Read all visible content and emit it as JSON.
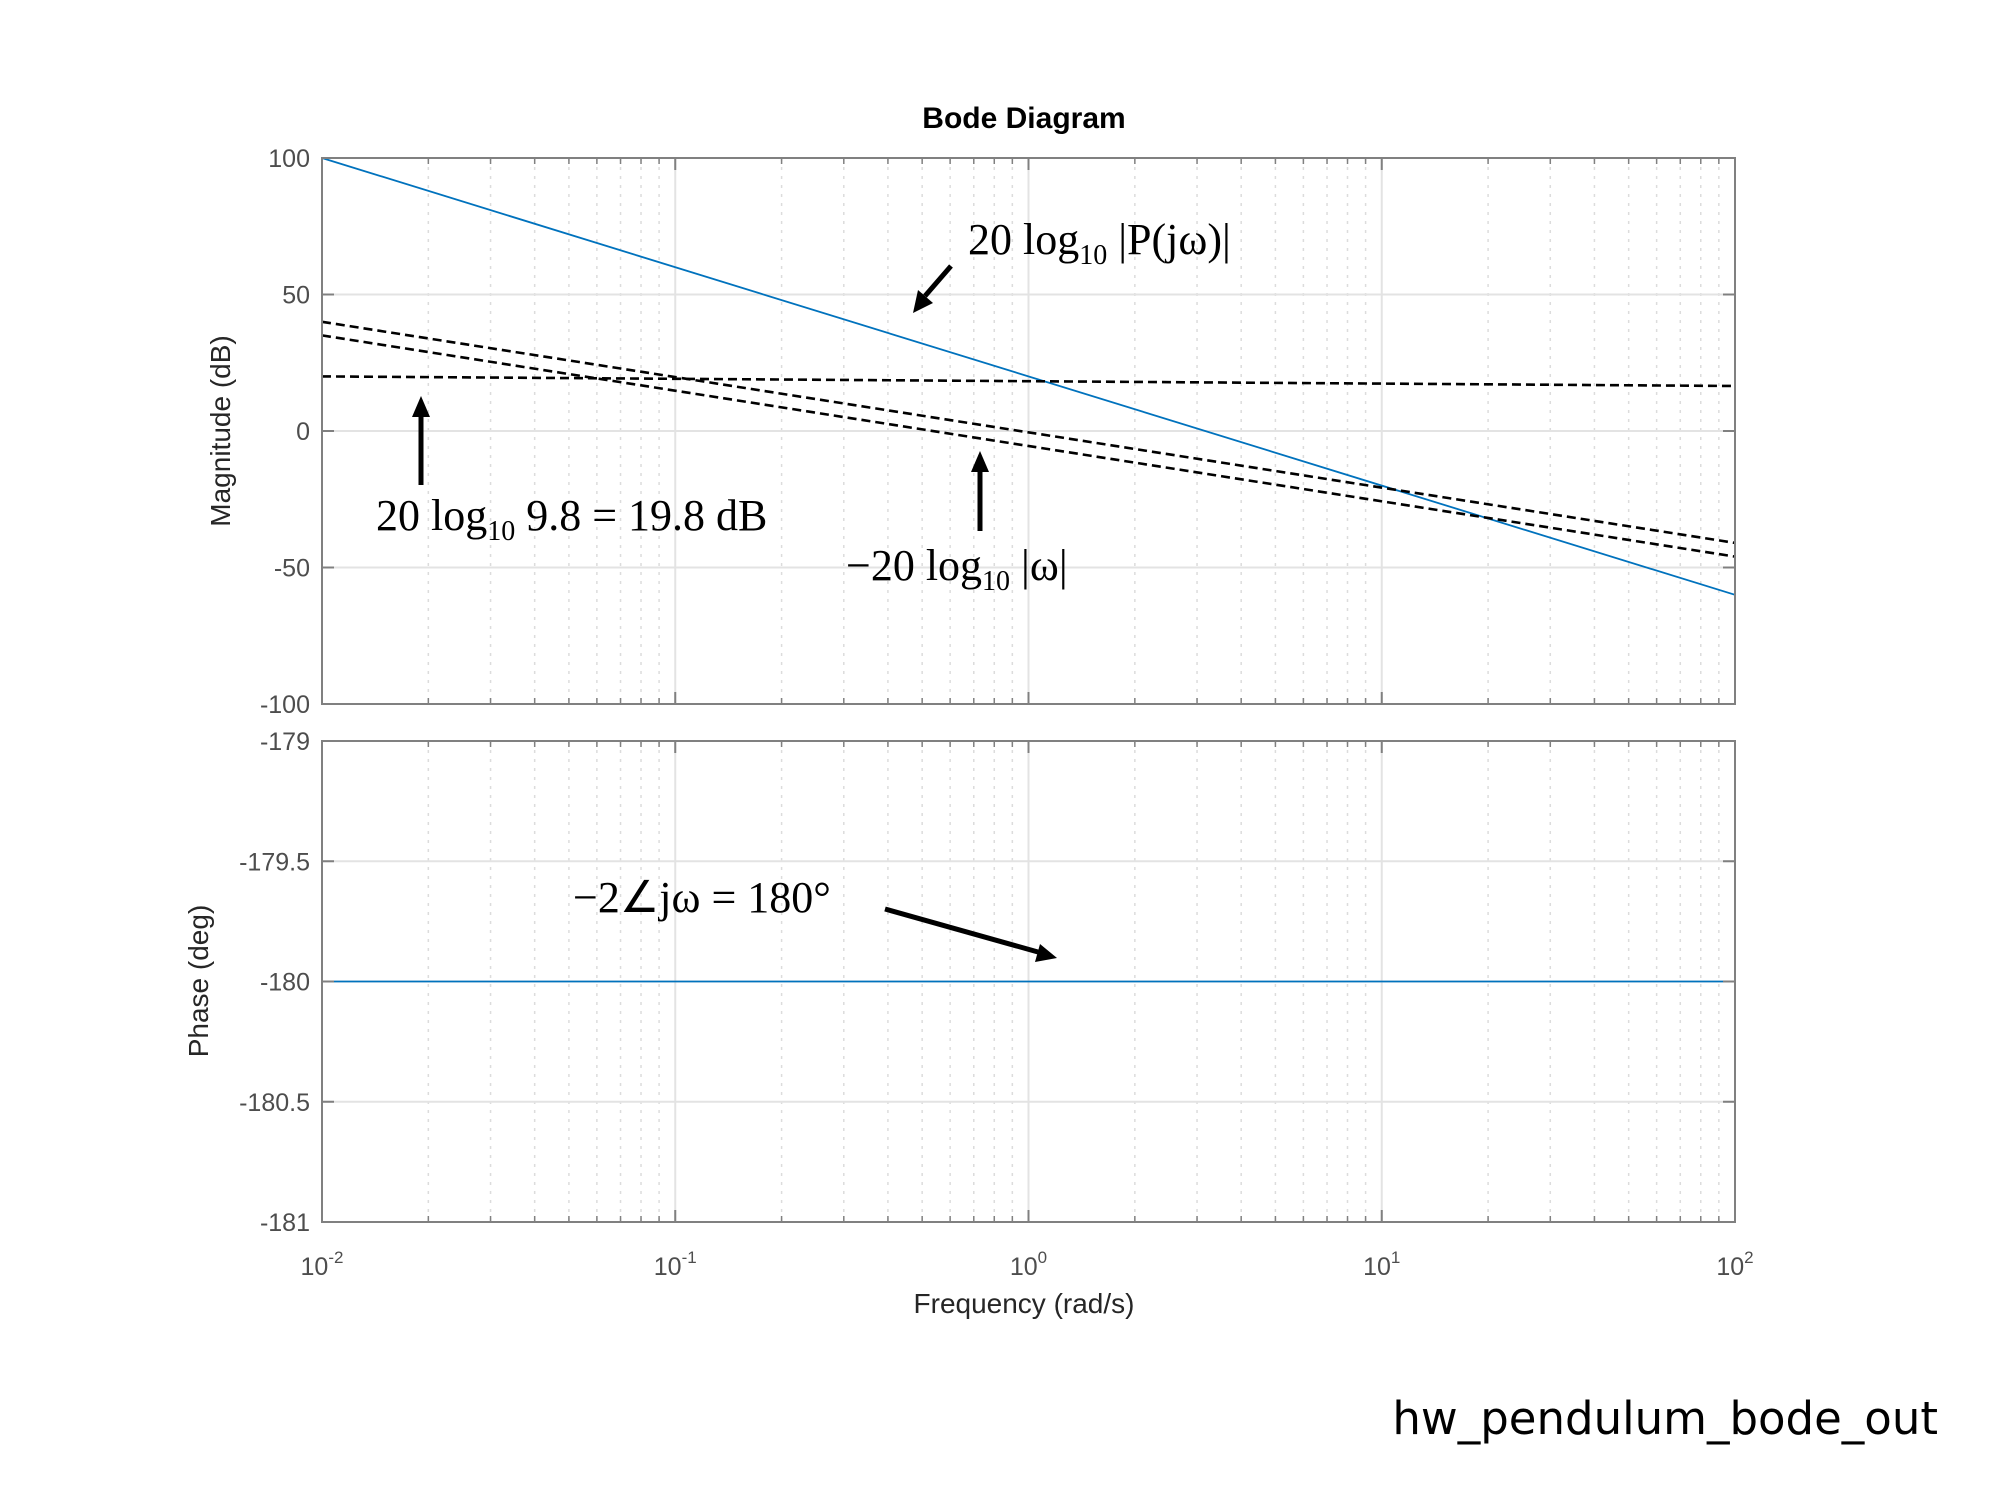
{
  "title": "Bode Diagram",
  "footer_label": "hw_pendulum_bode_out",
  "colors": {
    "curve": "#0072BD",
    "asymptote": "#000000",
    "grid": "#e6e6e6",
    "axes": "#808080"
  },
  "chart_data": [
    {
      "type": "line",
      "panel": "magnitude",
      "ylabel": "Magnitude (dB)",
      "xscale": "log",
      "xlim": [
        0.01,
        100
      ],
      "ylim": [
        -100,
        100
      ],
      "yticks": [
        100,
        50,
        0,
        -50,
        -100
      ],
      "grid": true,
      "series": [
        {
          "style": "solid",
          "color": "#0072BD",
          "x": [
            0.01,
            100
          ],
          "y": [
            100,
            -60
          ]
        },
        {
          "style": "dashed",
          "color": "#000000",
          "x": [
            0.01,
            100
          ],
          "y": [
            20,
            16.5
          ]
        },
        {
          "style": "dashed",
          "color": "#000000",
          "x": [
            0.01,
            100
          ],
          "y": [
            40,
            -41
          ]
        },
        {
          "style": "dashed",
          "color": "#000000",
          "x": [
            0.01,
            100
          ],
          "y": [
            35,
            -46
          ]
        }
      ],
      "annotations": [
        {
          "text_main": "20 log",
          "text_sub": "10",
          "text_rest": " |P(jω)|"
        },
        {
          "text_main": "20 log",
          "text_sub": "10",
          "text_rest": " 9.8 = 19.8 dB"
        },
        {
          "text_main": "−20 log",
          "text_sub": "10",
          "text_rest": " |ω|"
        }
      ]
    },
    {
      "type": "line",
      "panel": "phase",
      "ylabel": "Phase (deg)",
      "xlabel": "Frequency  (rad/s)",
      "xscale": "log",
      "xlim": [
        0.01,
        100
      ],
      "ylim": [
        -181,
        -179
      ],
      "yticks": [
        "-179",
        "-179.5",
        "-180",
        "-180.5",
        "-181"
      ],
      "xticks": [
        {
          "base": "10",
          "exp": "-2"
        },
        {
          "base": "10",
          "exp": "-1"
        },
        {
          "base": "10",
          "exp": "0"
        },
        {
          "base": "10",
          "exp": "1"
        },
        {
          "base": "10",
          "exp": "2"
        }
      ],
      "grid": true,
      "series": [
        {
          "style": "solid",
          "color": "#0072BD",
          "x": [
            0.01,
            100
          ],
          "y": [
            -180,
            -180
          ]
        }
      ],
      "annotations": [
        {
          "text_main": "−2∠jω = 180°"
        }
      ]
    }
  ]
}
